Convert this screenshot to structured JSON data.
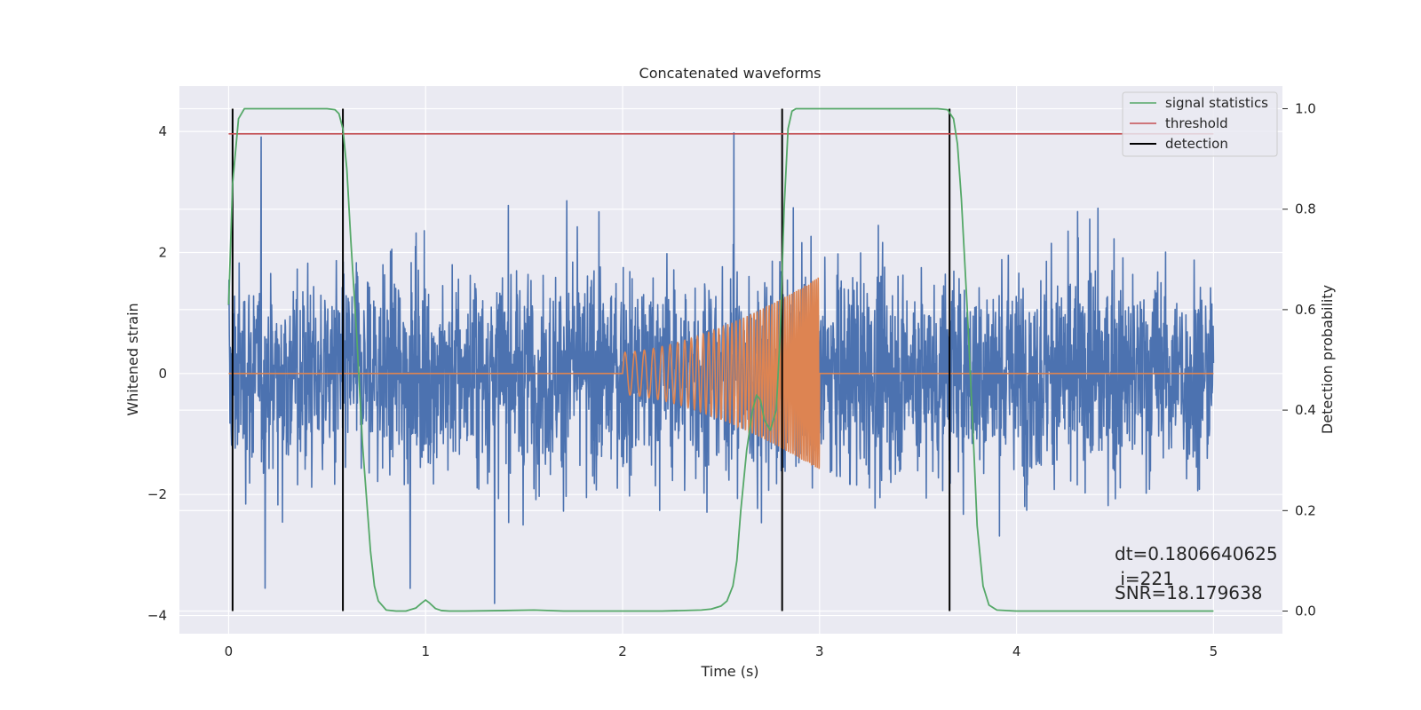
{
  "chart_data": {
    "type": "line",
    "title": "Concatenated waveforms",
    "xlabel": "Time (s)",
    "ylabel": "Whitened strain",
    "y2label": "Detection probability",
    "xlim": [
      -0.25,
      5.35
    ],
    "ylim": [
      -4.3,
      4.75
    ],
    "y2lim": [
      -0.045,
      1.045
    ],
    "x_ticks": [
      0,
      1,
      2,
      3,
      4,
      5
    ],
    "y_ticks": [
      -4,
      -2,
      0,
      2,
      4
    ],
    "y2_ticks": [
      0.0,
      0.2,
      0.4,
      0.6,
      0.8,
      1.0
    ],
    "grid": true,
    "legend_position": "top-right",
    "colors": {
      "background": "#eaeaf2",
      "grid": "#ffffff",
      "noise": "#4c72b0",
      "chirp": "#dd8452",
      "signal_statistics": "#55a868",
      "threshold": "#c44e52",
      "detection": "#000000"
    },
    "series": [
      {
        "name": "signal statistics",
        "axis": "right",
        "x": [
          0,
          0.02,
          0.05,
          0.08,
          0.12,
          0.2,
          0.3,
          0.4,
          0.5,
          0.54,
          0.56,
          0.58,
          0.6,
          0.62,
          0.65,
          0.68,
          0.72,
          0.74,
          0.76,
          0.8,
          0.85,
          0.9,
          0.95,
          0.98,
          1.0,
          1.02,
          1.05,
          1.08,
          1.12,
          1.2,
          1.4,
          1.55,
          1.7,
          2.0,
          2.2,
          2.4,
          2.45,
          2.5,
          2.53,
          2.56,
          2.58,
          2.6,
          2.63,
          2.66,
          2.68,
          2.7,
          2.72,
          2.75,
          2.78,
          2.8,
          2.82,
          2.84,
          2.86,
          2.88,
          2.9,
          3.0,
          3.2,
          3.4,
          3.6,
          3.65,
          3.68,
          3.7,
          3.72,
          3.75,
          3.78,
          3.8,
          3.83,
          3.86,
          3.9,
          4.0,
          4.5,
          5.0
        ],
        "y": [
          0.61,
          0.85,
          0.98,
          1.0,
          1.0,
          1.0,
          1.0,
          1.0,
          1.0,
          0.998,
          0.99,
          0.96,
          0.88,
          0.74,
          0.55,
          0.33,
          0.12,
          0.05,
          0.02,
          0.002,
          0.0,
          0.0,
          0.006,
          0.016,
          0.022,
          0.016,
          0.005,
          0.001,
          0.0,
          0.0,
          0.001,
          0.002,
          0.0,
          0.0,
          0.0,
          0.002,
          0.004,
          0.01,
          0.02,
          0.05,
          0.1,
          0.2,
          0.32,
          0.4,
          0.43,
          0.42,
          0.38,
          0.36,
          0.4,
          0.55,
          0.8,
          0.96,
          0.995,
          1.0,
          1.0,
          1.0,
          1.0,
          1.0,
          1.0,
          0.998,
          0.98,
          0.93,
          0.82,
          0.6,
          0.35,
          0.17,
          0.05,
          0.012,
          0.002,
          0.0,
          0.0,
          0.0
        ]
      },
      {
        "name": "threshold",
        "axis": "right",
        "x": [
          0,
          5
        ],
        "y": [
          0.95,
          0.95
        ]
      },
      {
        "name": "detection",
        "axis": "right",
        "type": "vlines",
        "x": [
          0.02,
          0.58,
          2.81,
          3.66
        ],
        "ymin": 0.0,
        "ymax": 1.0
      }
    ],
    "noise": {
      "axis": "left",
      "x_range": [
        0,
        5
      ],
      "approx_sigma": 0.85,
      "min": -3.8,
      "max": 4.4
    },
    "chirp": {
      "axis": "left",
      "x_range": [
        2.0,
        3.0
      ],
      "amplitude_start": 0.35,
      "amplitude_end": 1.6
    }
  },
  "legend": [
    {
      "label": "signal statistics",
      "color": "#55a868"
    },
    {
      "label": "threshold",
      "color": "#c44e52"
    },
    {
      "label": "detection",
      "color": "#000000"
    }
  ],
  "annotations": {
    "dt": "dt=0.1806640625",
    "i": " i=221",
    "snr": "SNR=18.179638"
  }
}
